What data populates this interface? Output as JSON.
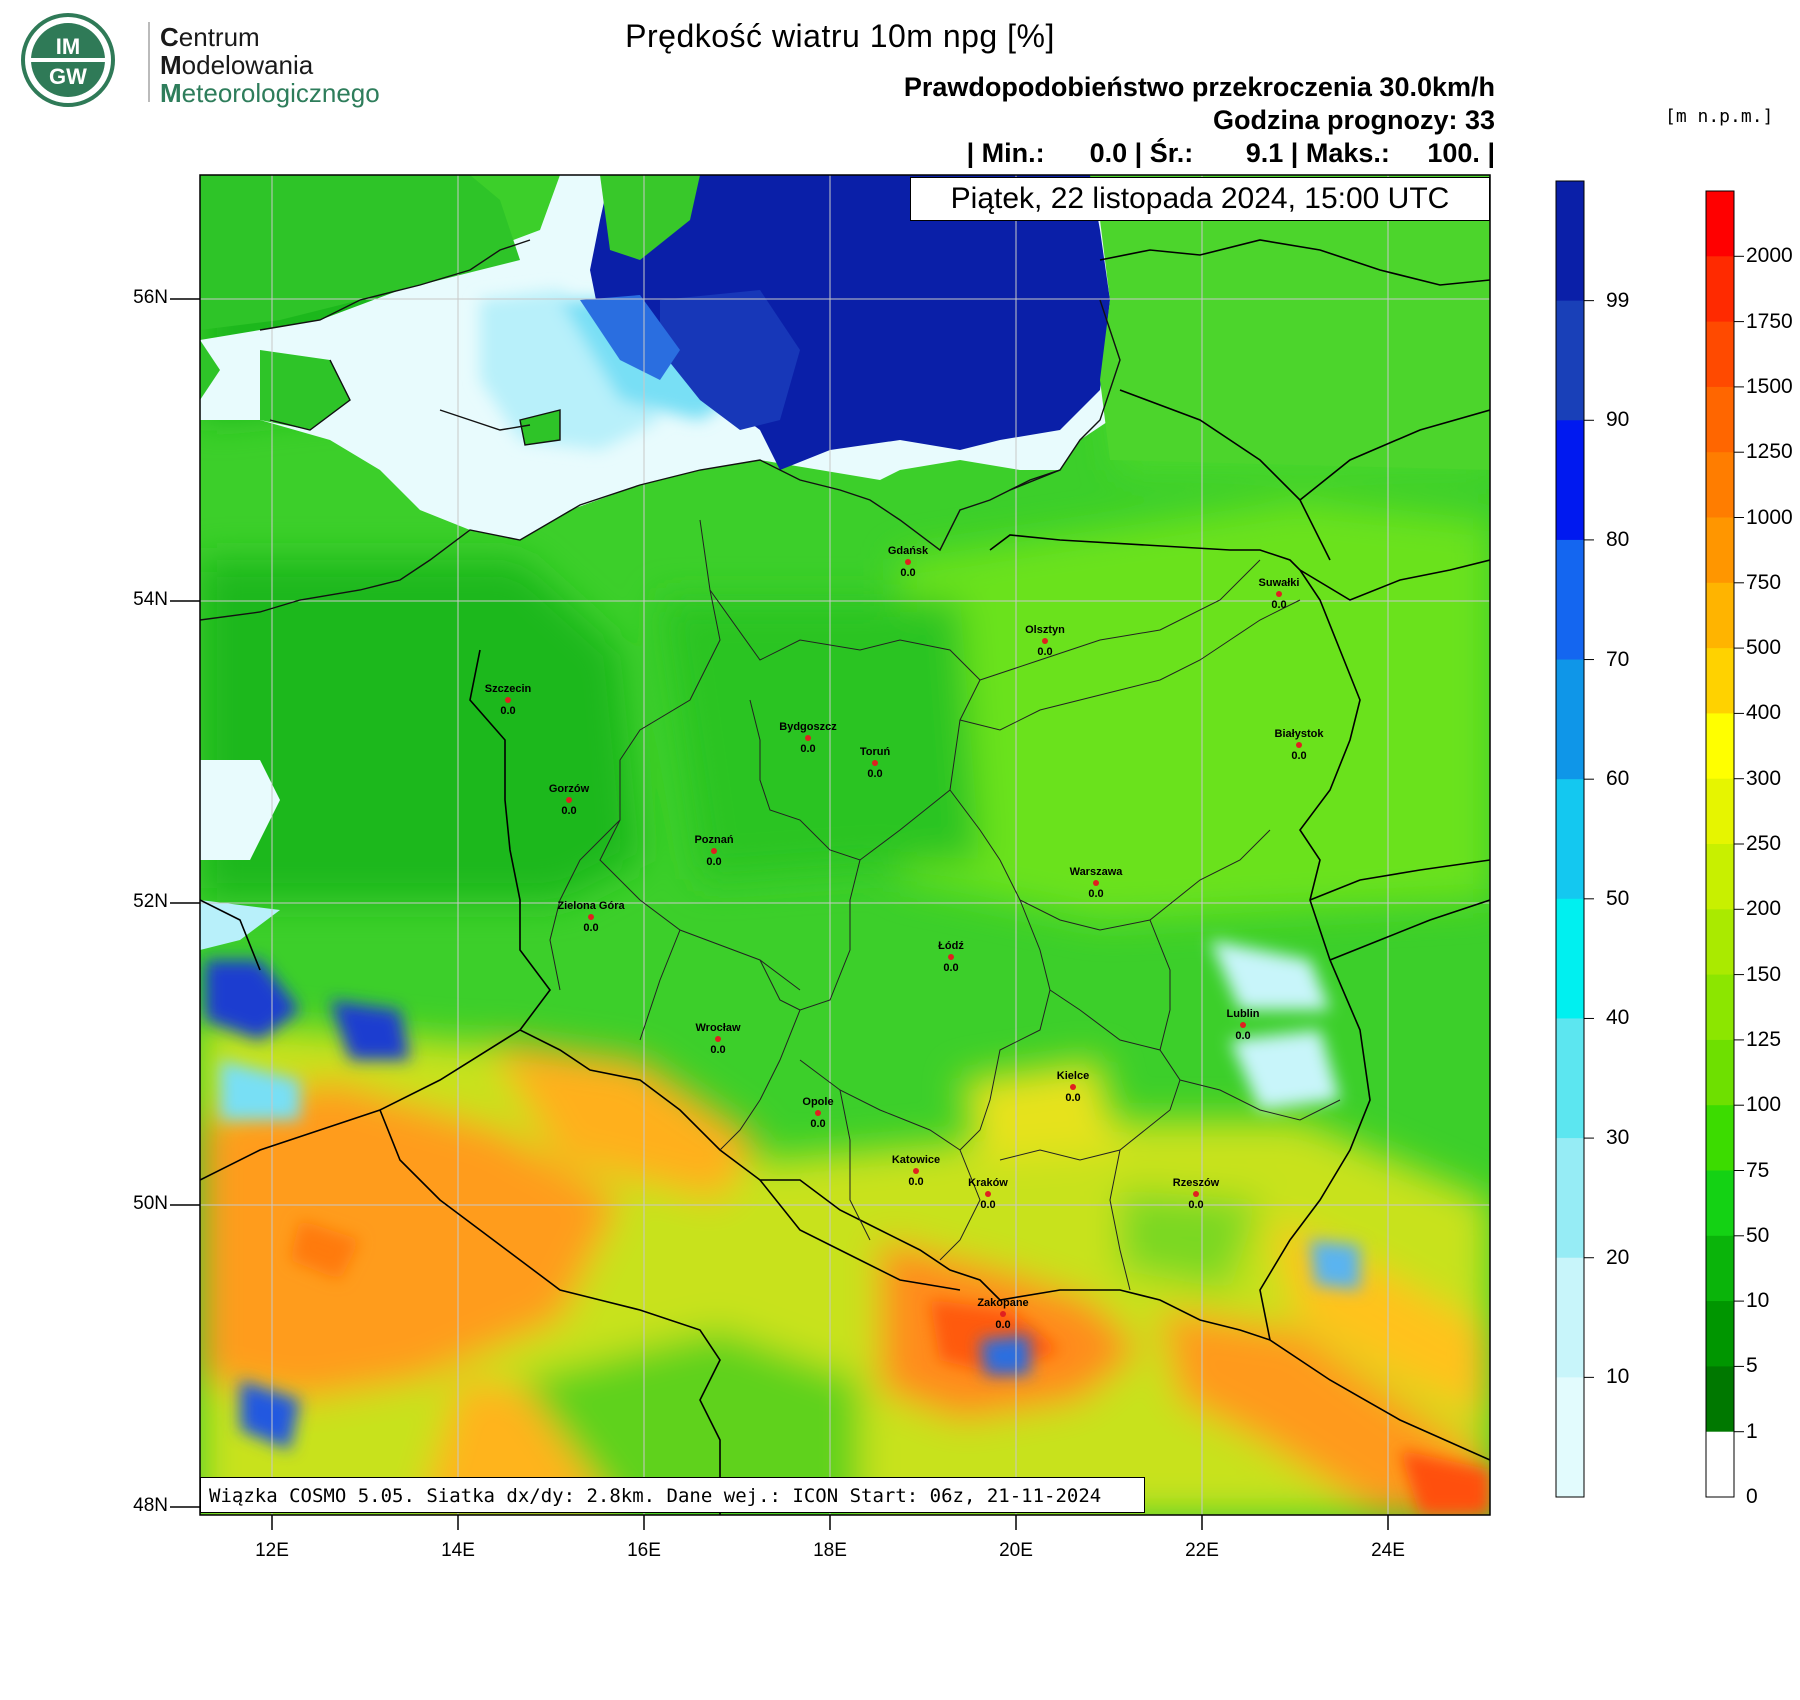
{
  "logo": {
    "badge_top": "IM",
    "badge_bottom": "GW",
    "line1_cap": "C",
    "line1_rest": "entrum",
    "line2_cap": "M",
    "line2_rest": "odelowania",
    "line3_cap": "M",
    "line3_rest": "eteorologicznego",
    "colors": {
      "badge": "#2f7a57",
      "text_green": "#2e7d5b"
    }
  },
  "title": "Prędkość wiatru 10m npg [%]",
  "subtitle": "Prawdopodobieństwo przekroczenia 30.0km/h",
  "forecast_hour": "Godzina prognozy: 33",
  "stats": "| Min.:      0.0 | Śr.:       9.1 | Maks.:     100. |",
  "date_label": "Piątek, 22 listopada 2024, 15:00 UTC",
  "unit_label": "[m  n.p.m.]",
  "footer": "Wiązka COSMO 5.05. Siatka dx/dy: 2.8km. Dane wej.: ICON Start: 06z, 21-11-2024",
  "axes": {
    "lat_labels": [
      "56N",
      "54N",
      "52N",
      "50N",
      "48N"
    ],
    "lon_labels": [
      "12E",
      "14E",
      "16E",
      "18E",
      "20E",
      "22E",
      "24E"
    ]
  },
  "cities": [
    {
      "name": "Gdańsk",
      "value": "0.0"
    },
    {
      "name": "Suwałki",
      "value": "0.0"
    },
    {
      "name": "Olsztyn",
      "value": "0.0"
    },
    {
      "name": "Szczecin",
      "value": "0.0"
    },
    {
      "name": "Bydgoszcz",
      "value": "0.0"
    },
    {
      "name": "Toruń",
      "value": "0.0"
    },
    {
      "name": "Białystok",
      "value": "0.0"
    },
    {
      "name": "Gorzów",
      "value": "0.0"
    },
    {
      "name": "Poznań",
      "value": "0.0"
    },
    {
      "name": "Warszawa",
      "value": "0.0"
    },
    {
      "name": "Zielona Góra",
      "value": "0.0"
    },
    {
      "name": "Łódź",
      "value": "0.0"
    },
    {
      "name": "Lublin",
      "value": "0.0"
    },
    {
      "name": "Wrocław",
      "value": "0.0"
    },
    {
      "name": "Kielce",
      "value": "0.0"
    },
    {
      "name": "Opole",
      "value": "0.0"
    },
    {
      "name": "Katowice",
      "value": "0.0"
    },
    {
      "name": "Kraków",
      "value": "0.0"
    },
    {
      "name": "Rzeszów",
      "value": "0.0"
    },
    {
      "name": "Zakopane",
      "value": "0.0"
    }
  ],
  "probability_scale": {
    "labels": [
      "99",
      "90",
      "80",
      "70",
      "60",
      "50",
      "40",
      "30",
      "20",
      "10"
    ],
    "colors": [
      "#0a1fa8",
      "#1940b8",
      "#0019f0",
      "#1466f0",
      "#0f96e8",
      "#14c8f0",
      "#00f0f0",
      "#5ce6f0",
      "#96ecf5",
      "#c8f5fa",
      "#e2fbfd"
    ]
  },
  "elevation_scale": {
    "labels": [
      "2000",
      "1750",
      "1500",
      "1250",
      "1000",
      "750",
      "500",
      "400",
      "300",
      "250",
      "200",
      "150",
      "125",
      "100",
      "75",
      "50",
      "10",
      "5",
      "1",
      "0"
    ],
    "colors": [
      "#ff0000",
      "#ff2a00",
      "#ff4a00",
      "#ff6600",
      "#ff7d00",
      "#ff9600",
      "#ffb400",
      "#ffd200",
      "#ffff00",
      "#e6f500",
      "#c8f000",
      "#aaea00",
      "#8ce600",
      "#6ee000",
      "#3cdc00",
      "#14d214",
      "#0ab40a",
      "#009600",
      "#007800",
      "#ffffff"
    ]
  }
}
